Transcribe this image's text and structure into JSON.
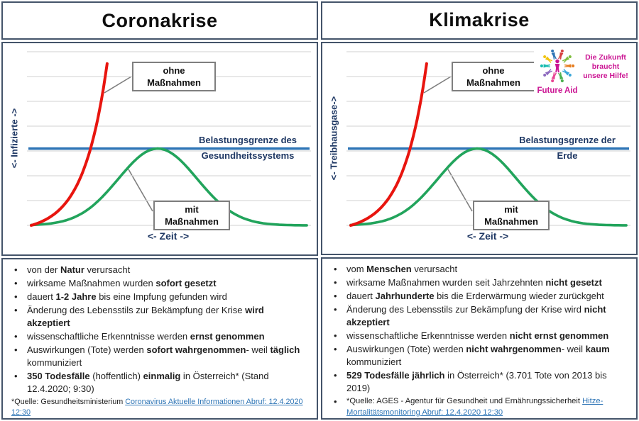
{
  "colors": {
    "panel_border": "#44546A",
    "curve_without": "#E8150F",
    "curve_with": "#22A45C",
    "threshold_line": "#2E75B6",
    "axis_text": "#1F3864",
    "gridline": "#D9D9D9",
    "callout_border": "#7F7F7F",
    "link": "#2E75B6",
    "logo_magenta": "#CB1493"
  },
  "logo": {
    "name": "Future Aid",
    "tagline": "Die Zukunft braucht unsere Hilfe!"
  },
  "left": {
    "title": "Coronakrise",
    "chart": {
      "y_axis_label": "<- Infizierte ->",
      "x_axis_label": "<- Zeit ->",
      "threshold1": "Belastungsgrenze des",
      "threshold2": "Gesundheitssystems",
      "callout_without_1": "ohne",
      "callout_without_2": "Maßnahmen",
      "callout_with_1": "mit",
      "callout_with_2": "Maßnahmen"
    },
    "bullets": [
      [
        {
          "t": "von der "
        },
        {
          "t": "Natur",
          "b": true
        },
        {
          "t": " verursacht"
        }
      ],
      [
        {
          "t": "wirksame Maßnahmen wurden "
        },
        {
          "t": "sofort gesetzt",
          "b": true
        }
      ],
      [
        {
          "t": "dauert "
        },
        {
          "t": "1-2 Jahre",
          "b": true
        },
        {
          "t": " bis eine Impfung gefunden wird"
        }
      ],
      [
        {
          "t": "Änderung des Lebensstils zur Bekämpfung der Krise "
        },
        {
          "t": "wird",
          "b": true
        },
        {
          "br": true
        },
        {
          "t": "akzeptiert",
          "b": true
        }
      ],
      [
        {
          "t": "wissenschaftliche Erkenntnisse werden "
        },
        {
          "t": "ernst genommen",
          "b": true
        }
      ],
      [
        {
          "t": "Auswirkungen (Tote) werden "
        },
        {
          "t": "sofort wahrgenommen",
          "b": true
        },
        {
          "t": "- weil "
        },
        {
          "t": "täglich",
          "b": true
        },
        {
          "br": true
        },
        {
          "t": "kommuniziert"
        }
      ],
      [
        {
          "t": "350 Todesfälle",
          "b": true
        },
        {
          "t": " (hoffentlich) "
        },
        {
          "t": "einmalig",
          "b": true
        },
        {
          "t": " in Österreich* (Stand"
        },
        {
          "br": true
        },
        {
          "t": "12.4.2020; 9:30)"
        }
      ]
    ],
    "source": {
      "prefix": "*Quelle: Gesundheitsministerium ",
      "link": "Coronavirus Aktuelle Informationen Abruf: 12.4.2020 12:30"
    }
  },
  "right": {
    "title": "Klimakrise",
    "chart": {
      "y_axis_label": "<- Treibhausgase->",
      "x_axis_label": "<- Zeit ->",
      "threshold1": "Belastungsgrenze der",
      "threshold2": "Erde",
      "callout_without_1": "ohne",
      "callout_without_2": "Maßnahmen",
      "callout_with_1": "mit",
      "callout_with_2": "Maßnahmen"
    },
    "bullets": [
      [
        {
          "t": "vom "
        },
        {
          "t": "Menschen",
          "b": true
        },
        {
          "t": " verursacht"
        }
      ],
      [
        {
          "t": "wirksame Maßnahmen wurden seit Jahrzehnten "
        },
        {
          "t": "nicht gesetzt",
          "b": true
        }
      ],
      [
        {
          "t": "dauert "
        },
        {
          "t": "Jahrhunderte",
          "b": true
        },
        {
          "t": " bis die Erderwärmung wieder zurückgeht"
        }
      ],
      [
        {
          "t": "Änderung des Lebensstils zur Bekämpfung der Krise wird "
        },
        {
          "t": "nicht",
          "b": true
        },
        {
          "br": true
        },
        {
          "t": "akzeptiert",
          "b": true
        }
      ],
      [
        {
          "t": "wissenschaftliche Erkenntnisse werden "
        },
        {
          "t": "nicht ernst genommen",
          "b": true
        }
      ],
      [
        {
          "t": "Auswirkungen (Tote) werden "
        },
        {
          "t": "nicht wahrgenommen",
          "b": true
        },
        {
          "t": "- weil "
        },
        {
          "t": "kaum",
          "b": true
        },
        {
          "br": true
        },
        {
          "t": "kommuniziert"
        }
      ],
      [
        {
          "t": "529 Todesfälle jährlich",
          "b": true
        },
        {
          "t": " in Österreich* (3.701 Tote von 2013 bis"
        },
        {
          "br": true
        },
        {
          "t": "2019)"
        }
      ]
    ],
    "source": {
      "prefix": "*Quelle: AGES - Agentur für Gesundheit und Ernährungssicherheit ",
      "link": "Hitze-Mortalitätsmonitoring Abruf: 12.4.2020 12:30"
    }
  },
  "chart_data": [
    {
      "type": "line",
      "title": "Coronakrise",
      "xlabel": "<- Zeit ->",
      "ylabel": "<- Infizierte ->",
      "x_range_norm": [
        0,
        1
      ],
      "y_range_norm": [
        0,
        1
      ],
      "grid": true,
      "gridlines": 8,
      "legend_position": "callouts-inside",
      "series": [
        {
          "name": "Belastungsgrenze des Gesundheitssystems",
          "shape": "hline",
          "y": 0.437,
          "color": "#2E75B6"
        },
        {
          "name": "mit Maßnahmen",
          "shape": "bell",
          "center": 0.45,
          "sigma": 0.14,
          "peak": 0.437,
          "color": "#22A45C"
        },
        {
          "name": "ohne Maßnahmen",
          "shape": "exponential",
          "x_end": 0.27,
          "y_end": 0.92,
          "color": "#E8150F"
        }
      ]
    },
    {
      "type": "line",
      "title": "Klimakrise",
      "xlabel": "<- Zeit ->",
      "ylabel": "<- Treibhausgase->",
      "x_range_norm": [
        0,
        1
      ],
      "y_range_norm": [
        0,
        1
      ],
      "grid": true,
      "gridlines": 8,
      "legend_position": "callouts-inside",
      "series": [
        {
          "name": "Belastungsgrenze der Erde",
          "shape": "hline",
          "y": 0.437,
          "color": "#2E75B6"
        },
        {
          "name": "mit Maßnahmen",
          "shape": "bell",
          "center": 0.45,
          "sigma": 0.14,
          "peak": 0.437,
          "color": "#22A45C"
        },
        {
          "name": "ohne Maßnahmen",
          "shape": "exponential",
          "x_end": 0.27,
          "y_end": 0.92,
          "color": "#E8150F"
        }
      ]
    }
  ]
}
